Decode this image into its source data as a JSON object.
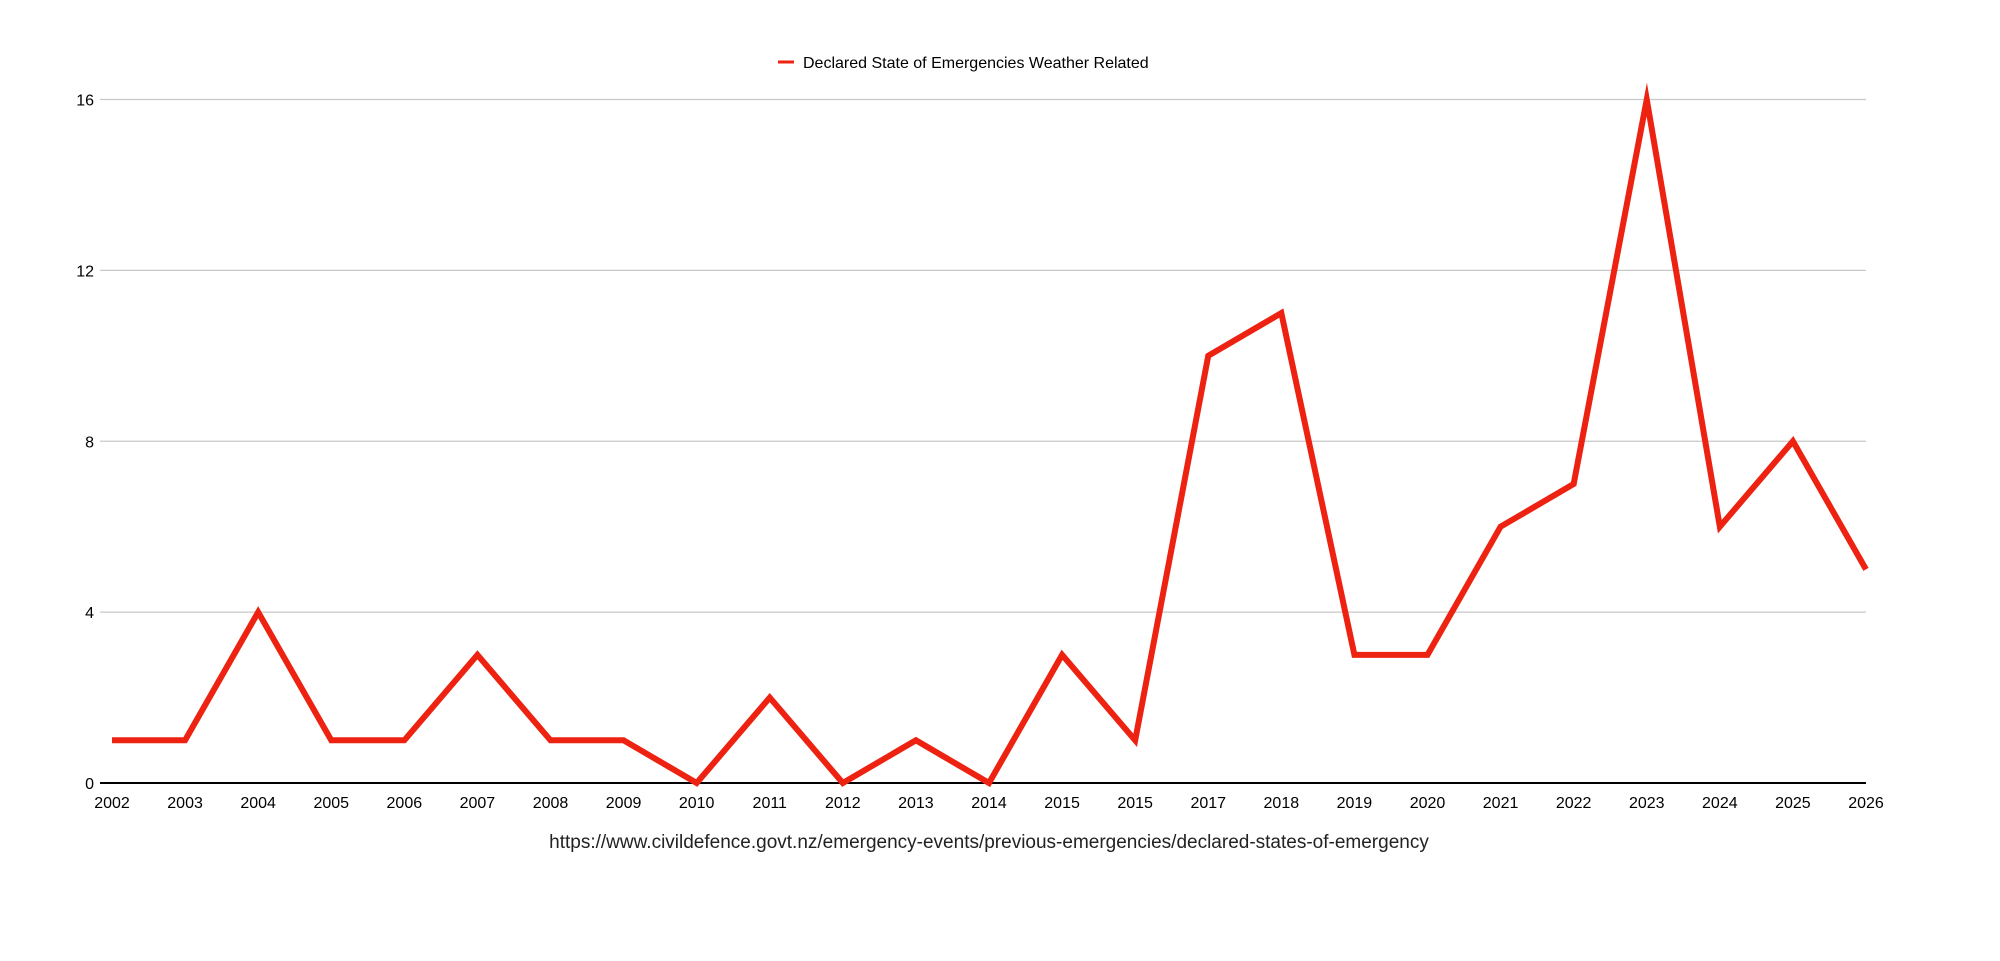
{
  "chart_data": {
    "type": "line",
    "title": "",
    "xlabel": "https://www.civildefence.govt.nz/emergency-events/previous-emergencies/declared-states-of-emergency",
    "ylabel": "",
    "ylim": [
      0,
      16
    ],
    "yticks": [
      "0",
      "4",
      "8",
      "12",
      "16"
    ],
    "grid": true,
    "legend_position": "top-center",
    "categories": [
      "2002",
      "2003",
      "2004",
      "2005",
      "2006",
      "2007",
      "2008",
      "2009",
      "2010",
      "2011",
      "2012",
      "2013",
      "2014",
      "2015",
      "2015",
      "2017",
      "2018",
      "2019",
      "2020",
      "2021",
      "2022",
      "2023",
      "2024",
      "2025",
      "2026"
    ],
    "series": [
      {
        "name": "Declared State of Emergencies Weather Related",
        "color": "#ee2211",
        "values": [
          1,
          1,
          4,
          1,
          1,
          3,
          1,
          1,
          0,
          2,
          0,
          1,
          0,
          3,
          1,
          10,
          11,
          3,
          3,
          6,
          7,
          16,
          6,
          8,
          5
        ]
      }
    ]
  }
}
